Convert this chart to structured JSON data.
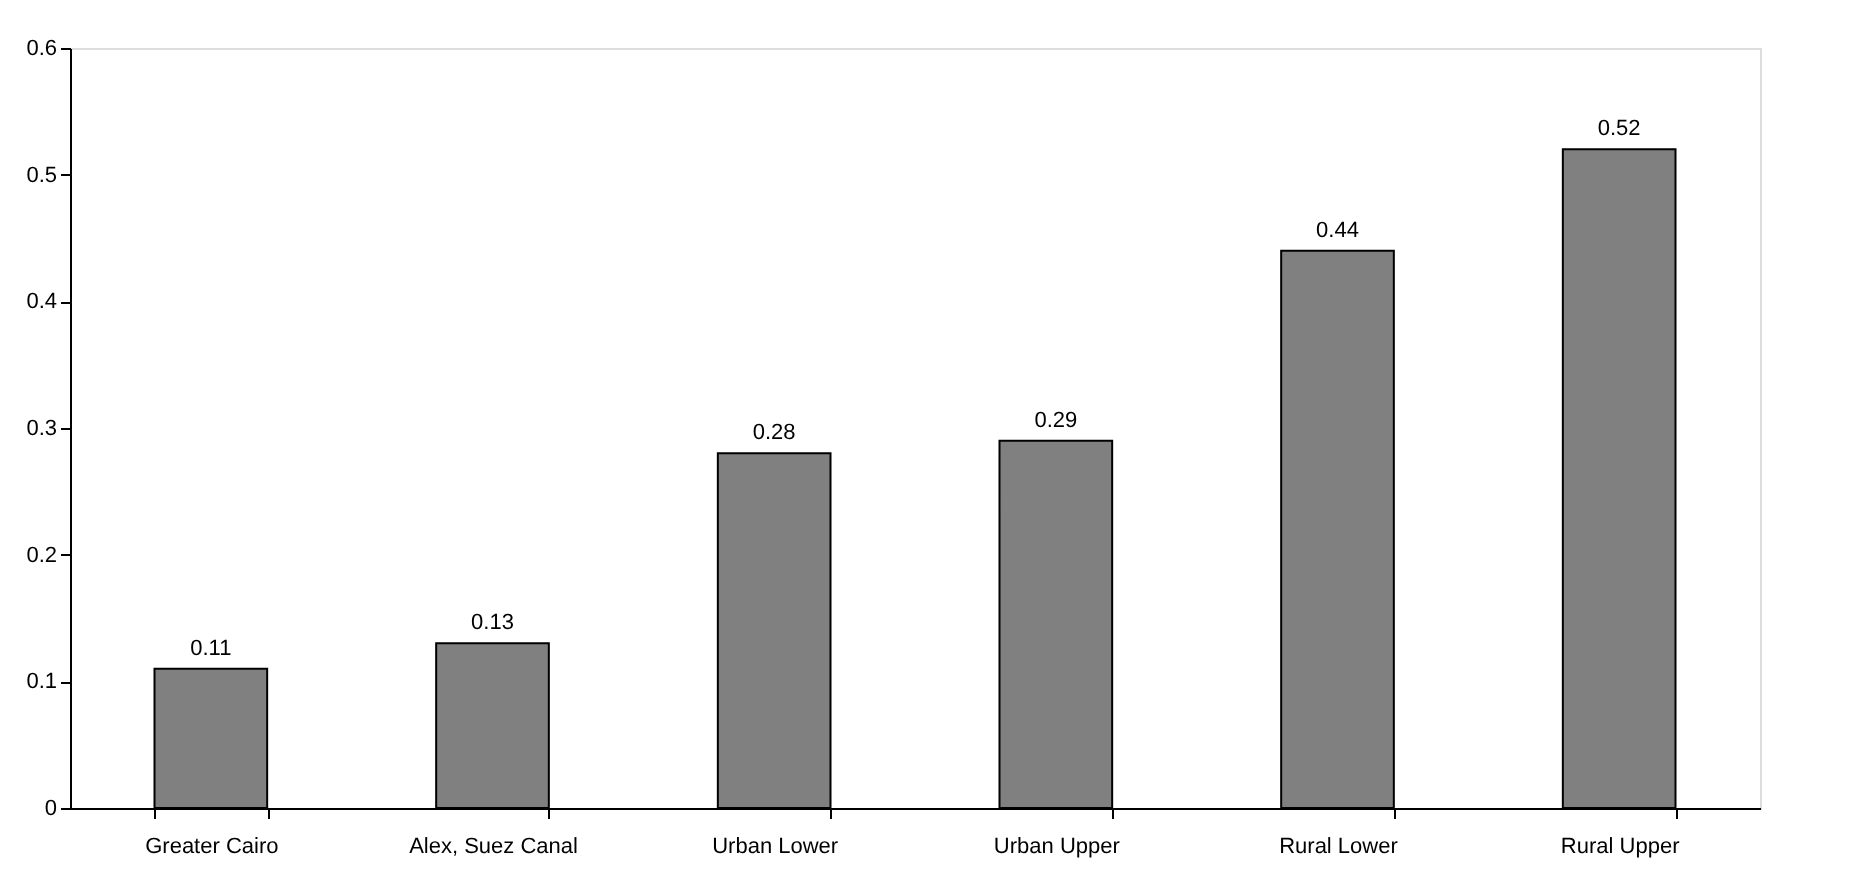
{
  "chart_data": {
    "type": "bar",
    "categories": [
      "Greater Cairo",
      "Alex, Suez Canal",
      "Urban Lower",
      "Urban Upper",
      "Rural Lower",
      "Rural Upper"
    ],
    "values": [
      0.11,
      0.13,
      0.28,
      0.29,
      0.44,
      0.52
    ],
    "color": "#808080",
    "ylim": [
      0,
      0.6
    ],
    "yticks": [
      0,
      0.1,
      0.2,
      0.3,
      0.4,
      0.5,
      0.6
    ],
    "grid": false,
    "data_labels": true
  }
}
